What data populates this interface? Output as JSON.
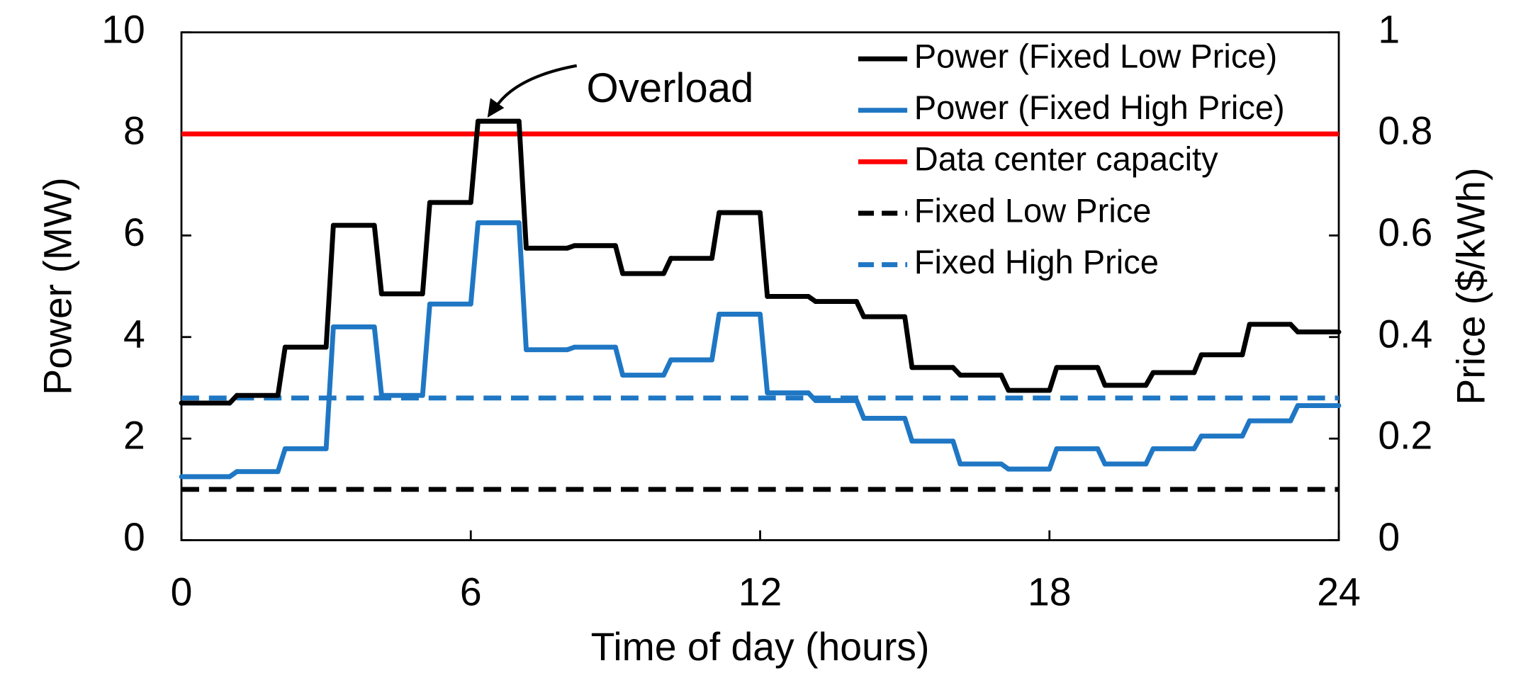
{
  "chart_data": {
    "type": "line",
    "step": true,
    "x_label": "Time of day (hours)",
    "y_label": "Power (MW)",
    "y2_label": "Price ($/kWh)",
    "annotation": "Overload",
    "x": [
      0,
      1,
      2,
      3,
      4,
      5,
      6,
      7,
      8,
      9,
      10,
      11,
      12,
      13,
      14,
      15,
      16,
      17,
      18,
      19,
      20,
      21,
      22,
      23
    ],
    "series": [
      {
        "name": "Power (Fixed Low Price)",
        "color": "#000000",
        "values": [
          2.7,
          2.85,
          3.8,
          6.2,
          4.85,
          6.65,
          8.25,
          5.75,
          5.8,
          5.25,
          5.55,
          6.45,
          4.8,
          4.7,
          4.4,
          3.4,
          3.25,
          2.95,
          3.4,
          3.05,
          3.3,
          3.65,
          4.25,
          4.1
        ]
      },
      {
        "name": "Power (Fixed High Price)",
        "color": "#1f77c4",
        "values": [
          1.25,
          1.35,
          1.8,
          4.2,
          2.85,
          4.65,
          6.25,
          3.75,
          3.8,
          3.25,
          3.55,
          4.45,
          2.9,
          2.75,
          2.4,
          1.95,
          1.5,
          1.4,
          1.8,
          1.5,
          1.8,
          2.05,
          2.35,
          2.65
        ]
      }
    ],
    "hlines": [
      {
        "name": "Data center capacity",
        "color": "#ff0000",
        "value": 8,
        "axis": "y",
        "dashed": false
      },
      {
        "name": "Fixed Low Price",
        "color": "#000000",
        "value": 0.1,
        "axis": "y2",
        "dashed": true
      },
      {
        "name": "Fixed High Price",
        "color": "#1f77c4",
        "value": 0.28,
        "axis": "y2",
        "dashed": true
      }
    ],
    "xlim": [
      0,
      24
    ],
    "xticks": [
      0,
      6,
      12,
      18,
      24
    ],
    "ylim": [
      0,
      10
    ],
    "yticks": [
      0,
      2,
      4,
      6,
      8,
      10
    ],
    "y2lim": [
      0,
      1
    ],
    "y2ticks": [
      0,
      0.2,
      0.4,
      0.6,
      0.8,
      1
    ],
    "legend": "upper right"
  }
}
